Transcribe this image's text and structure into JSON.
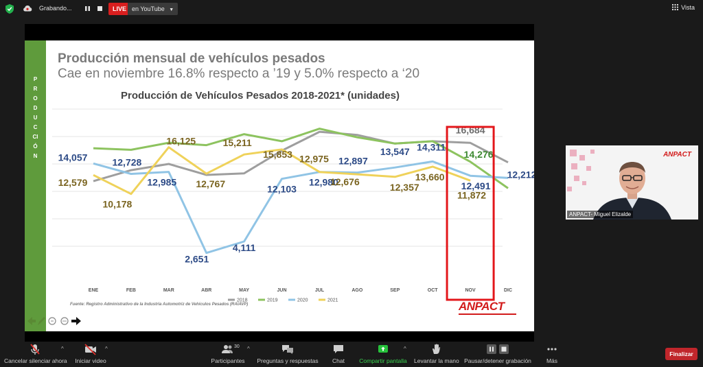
{
  "topbar": {
    "recording_label": "Grabando...",
    "live_label": "LIVE",
    "youtube_label": "en YouTube",
    "view_label": "Vista"
  },
  "slide": {
    "side_tab_text": "PRODUCCIÓN",
    "title_line1": "Producción mensual de vehículos pesados",
    "title_line2": "Cae en noviembre 16.8% respecto a ’19 y 5.0% respecto a ‘20",
    "chart_title": "Producción de Vehículos Pesados 2018-2021* (unidades)",
    "source": "Fuente: Registro Administrativo de la Industria Automotriz de Vehículos Pesados (RAIAVP)",
    "logo": "ANPACT"
  },
  "chart_data": {
    "type": "line",
    "title": "Producción de Vehículos Pesados 2018-2021* (unidades)",
    "categories": [
      "ENE",
      "FEB",
      "MAR",
      "ABR",
      "MAY",
      "JUN",
      "JUL",
      "AGO",
      "SEP",
      "OCT",
      "NOV",
      "DIC"
    ],
    "ylim": [
      0,
      21000
    ],
    "grid": true,
    "legend": "bottom",
    "highlight_category": "NOV",
    "highlight_color": "#e3171b",
    "series": [
      {
        "name": "2018",
        "color": "#9e9e9e",
        "values": [
          11800,
          13200,
          14000,
          12600,
          12800,
          15700,
          18100,
          17700,
          16600,
          16900,
          16684,
          14200
        ]
      },
      {
        "name": "2019",
        "color": "#8dc35f",
        "values": [
          16000,
          15800,
          16700,
          16400,
          17800,
          16900,
          18500,
          17400,
          16600,
          16900,
          14276,
          10900
        ]
      },
      {
        "name": "2020",
        "color": "#90c4e5",
        "values": [
          14057,
          12728,
          12985,
          2651,
          4111,
          12103,
          12980,
          12897,
          13547,
          14311,
          12491,
          12212
        ]
      },
      {
        "name": "2021",
        "color": "#efd25a",
        "values": [
          12579,
          10178,
          16125,
          12767,
          15211,
          15853,
          12975,
          12676,
          12357,
          13660,
          11872,
          null
        ]
      }
    ],
    "data_labels": [
      {
        "series": "2020",
        "category": "ENE",
        "text": "14,057",
        "color": "#2c4a86"
      },
      {
        "series": "2021",
        "category": "ENE",
        "text": "12,579",
        "color": "#7a6420"
      },
      {
        "series": "2020",
        "category": "FEB",
        "text": "12,728",
        "color": "#2c4a86"
      },
      {
        "series": "2021",
        "category": "FEB",
        "text": "10,178",
        "color": "#7a6420"
      },
      {
        "series": "2020",
        "category": "MAR",
        "text": "12,985",
        "color": "#2c4a86"
      },
      {
        "series": "2021",
        "category": "MAR",
        "text": "16,125",
        "color": "#7a6420"
      },
      {
        "series": "2020",
        "category": "ABR",
        "text": "2,651",
        "color": "#2c4a86"
      },
      {
        "series": "2021",
        "category": "ABR",
        "text": "12,767",
        "color": "#7a6420"
      },
      {
        "series": "2020",
        "category": "MAY",
        "text": "4,111",
        "color": "#2c4a86"
      },
      {
        "series": "2021",
        "category": "MAY",
        "text": "15,211",
        "color": "#7a6420"
      },
      {
        "series": "2020",
        "category": "JUN",
        "text": "12,103",
        "color": "#2c4a86"
      },
      {
        "series": "2021",
        "category": "JUN",
        "text": "15,853",
        "color": "#7a6420"
      },
      {
        "series": "2020",
        "category": "JUL",
        "text": "12,980",
        "color": "#2c4a86"
      },
      {
        "series": "2021",
        "category": "JUL",
        "text": "12,975",
        "color": "#7a6420"
      },
      {
        "series": "2020",
        "category": "AGO",
        "text": "12,897",
        "color": "#2c4a86"
      },
      {
        "series": "2021",
        "category": "AGO",
        "text": "12,676",
        "color": "#7a6420"
      },
      {
        "series": "2020",
        "category": "SEP",
        "text": "13,547",
        "color": "#2c4a86"
      },
      {
        "series": "2021",
        "category": "SEP",
        "text": "12,357",
        "color": "#7a6420"
      },
      {
        "series": "2020",
        "category": "OCT",
        "text": "14,311",
        "color": "#2c4a86"
      },
      {
        "series": "2021",
        "category": "OCT",
        "text": "13,660",
        "color": "#7a6420"
      },
      {
        "series": "2018",
        "category": "NOV",
        "text": "16,684",
        "color": "#6d6d6d"
      },
      {
        "series": "2019",
        "category": "NOV",
        "text": "14,276",
        "color": "#3e8a32"
      },
      {
        "series": "2020",
        "category": "NOV",
        "text": "12,491",
        "color": "#2c4a86"
      },
      {
        "series": "2021",
        "category": "NOV",
        "text": "11,872",
        "color": "#7a6420"
      },
      {
        "series": "2020",
        "category": "DIC",
        "text": "12,212",
        "color": "#2c4a86"
      }
    ]
  },
  "video": {
    "name": "ANPACT- Miguel Elizalde",
    "logo": "ANPACT"
  },
  "toolbar": {
    "mute_label": "Cancelar silenciar ahora",
    "video_label": "Iniciar video",
    "participants_label": "Participantes",
    "participants_count": "30",
    "qa_label": "Preguntas y respuestas",
    "chat_label": "Chat",
    "share_label": "Compartir pantalla",
    "raise_hand_label": "Levantar la mano",
    "pause_rec_label": "Pausar/detener grabación",
    "more_label": "Más",
    "end_label": "Finalizar"
  }
}
